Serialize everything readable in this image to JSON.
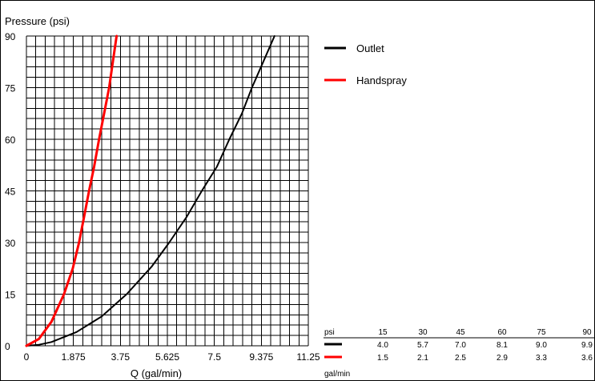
{
  "chart_data": {
    "type": "line",
    "ylabel": "Pressure (psi)",
    "xlabel": "Q (gal/min)",
    "xlim": [
      0,
      11.25
    ],
    "ylim": [
      0,
      90
    ],
    "x_ticks": [
      "0",
      "1.875",
      "3.75",
      "5.625",
      "7.5",
      "9.375",
      "11.25"
    ],
    "y_ticks": [
      "0",
      "15",
      "30",
      "45",
      "60",
      "75",
      "90"
    ],
    "grid": true,
    "legend_position": "right",
    "series": [
      {
        "name": "Outlet",
        "color": "#000000",
        "points": [
          [
            0.0,
            0
          ],
          [
            0.5,
            0.3
          ],
          [
            1.0,
            1.1
          ],
          [
            2.0,
            4
          ],
          [
            3.0,
            8.5
          ],
          [
            4.0,
            15
          ],
          [
            5.0,
            23
          ],
          [
            5.7,
            30
          ],
          [
            6.4,
            37.5
          ],
          [
            7.0,
            45
          ],
          [
            7.6,
            52
          ],
          [
            8.1,
            60
          ],
          [
            8.6,
            67.5
          ],
          [
            9.0,
            75
          ],
          [
            9.45,
            82.5
          ],
          [
            9.9,
            90
          ]
        ],
        "color_hint": "black"
      },
      {
        "name": "Handspray",
        "color": "#ff0000",
        "points": [
          [
            0.0,
            0
          ],
          [
            0.5,
            2
          ],
          [
            1.0,
            7
          ],
          [
            1.5,
            15
          ],
          [
            1.85,
            22.5
          ],
          [
            2.1,
            30
          ],
          [
            2.3,
            37.5
          ],
          [
            2.5,
            45
          ],
          [
            2.7,
            52
          ],
          [
            2.9,
            60
          ],
          [
            3.1,
            67.5
          ],
          [
            3.3,
            75
          ],
          [
            3.45,
            82.5
          ],
          [
            3.6,
            90
          ]
        ]
      }
    ],
    "table": {
      "header_label": "psi",
      "columns": [
        "15",
        "30",
        "45",
        "60",
        "75",
        "90"
      ],
      "rows": [
        {
          "series": "Outlet",
          "color": "#000000",
          "values": [
            "4.0",
            "5.7",
            "7.0",
            "8.1",
            "9.0",
            "9.9"
          ]
        },
        {
          "series": "Handspray",
          "color": "#ff0000",
          "values": [
            "1.5",
            "2.1",
            "2.5",
            "2.9",
            "3.3",
            "3.6"
          ]
        }
      ],
      "unit_label": "gal/min"
    }
  }
}
